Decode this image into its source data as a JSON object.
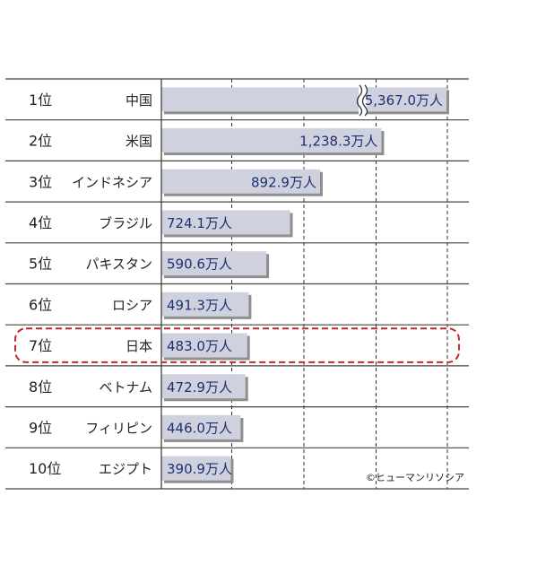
{
  "chart_data": {
    "type": "bar",
    "orientation": "horizontal",
    "categories": [
      "中国",
      "米国",
      "インドネシア",
      "ブラジル",
      "パキスタン",
      "ロシア",
      "日本",
      "ベトナム",
      "フィリピン",
      "エジプト"
    ],
    "ranks": [
      "1位",
      "2位",
      "3位",
      "4位",
      "5位",
      "6位",
      "7位",
      "8位",
      "9位",
      "10位"
    ],
    "values": [
      5367.0,
      1238.3,
      892.9,
      724.1,
      590.6,
      491.3,
      483.0,
      472.9,
      446.0,
      390.9
    ],
    "value_labels": [
      "5,367.0万人",
      "1,238.3万人",
      "892.9万人",
      "724.1万人",
      "590.6万人",
      "491.3万人",
      "483.0万人",
      "472.9万人",
      "446.0万人",
      "390.9万人"
    ],
    "axis_broken_for_first_bar": true,
    "highlighted_category": "日本",
    "grid": "vertical dashed",
    "colors": {
      "bar": "#cfd2de",
      "value_text": "#1f2f72",
      "highlight_border": "#c0282d",
      "row_line": "#444444"
    }
  },
  "credit": "©ヒューマンリソシア"
}
